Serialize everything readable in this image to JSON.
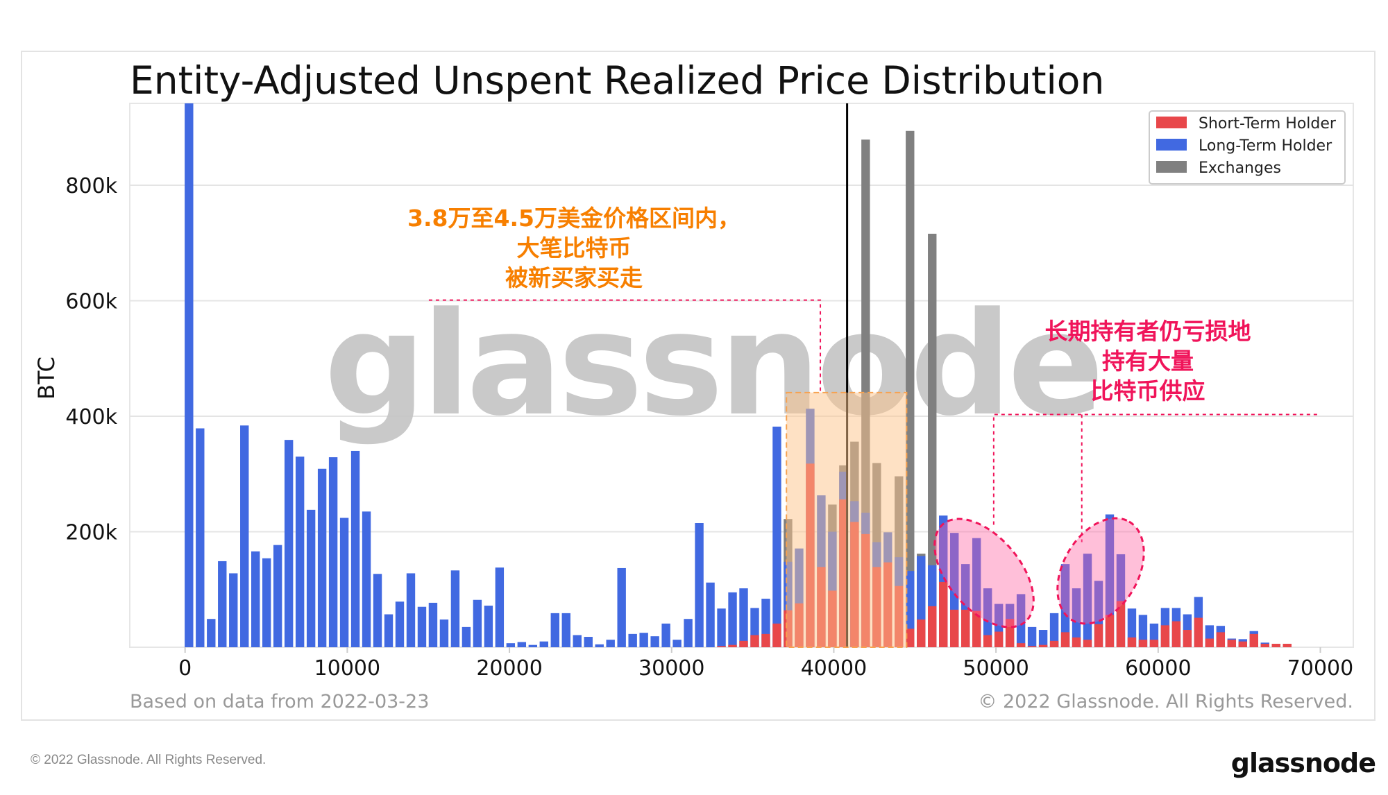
{
  "chart_data": {
    "type": "bar",
    "title": "Entity-Adjusted Unspent Realized Price Distribution",
    "xlabel": "",
    "ylabel": "BTC",
    "xlim": [
      -3300,
      72000
    ],
    "ylim": [
      0,
      942000
    ],
    "x_ticks": [
      0,
      10000,
      20000,
      30000,
      40000,
      50000,
      60000,
      70000
    ],
    "x_tick_labels": [
      "0",
      "10000",
      "20000",
      "30000",
      "40000",
      "50000",
      "60000",
      "70000"
    ],
    "y_ticks": [
      200000,
      400000,
      600000,
      800000
    ],
    "y_tick_labels": [
      "200k",
      "400k",
      "600k",
      "800k"
    ],
    "grid": true,
    "legend_position": "top-right",
    "x": [
      240,
      924,
      1608,
      2292,
      2976,
      3660,
      4344,
      5028,
      5712,
      6396,
      7080,
      7764,
      8448,
      9132,
      9816,
      10500,
      11184,
      11868,
      12552,
      13236,
      13920,
      14604,
      15288,
      15972,
      16656,
      17340,
      18024,
      18708,
      19392,
      20076,
      20760,
      21444,
      22128,
      22812,
      23496,
      24180,
      24864,
      25548,
      26232,
      26916,
      27600,
      28284,
      28968,
      29652,
      30336,
      31020,
      31704,
      32388,
      33072,
      33756,
      34440,
      35124,
      35808,
      36492,
      37176,
      37860,
      38544,
      39228,
      39912,
      40596,
      41280,
      41964,
      42648,
      43332,
      44016,
      44700,
      45384,
      46068,
      46752,
      47436,
      48120,
      48804,
      49488,
      50172,
      50856,
      51540,
      52224,
      52908,
      53592,
      54276,
      54960,
      55644,
      56328,
      57012,
      57696,
      58380,
      59064,
      59748,
      60432,
      61116,
      61800,
      62484,
      63168,
      63852,
      64536,
      65220,
      65904,
      66588,
      67272,
      67956
    ],
    "series": [
      {
        "name": "Short-Term Holder",
        "color": "#e8474a",
        "values": [
          0,
          0,
          0,
          0,
          0,
          0,
          0,
          0,
          0,
          0,
          0,
          0,
          0,
          0,
          0,
          0,
          0,
          0,
          0,
          0,
          0,
          0,
          0,
          0,
          0,
          0,
          0,
          0,
          0,
          0,
          0,
          0,
          0,
          0,
          0,
          0,
          0,
          0,
          0,
          0,
          0,
          0,
          0,
          0,
          0,
          0,
          0,
          0,
          2000,
          4000,
          11000,
          21000,
          23000,
          41000,
          64000,
          76000,
          318000,
          139000,
          98000,
          256000,
          217000,
          196000,
          139000,
          147000,
          106000,
          32000,
          48000,
          71000,
          113000,
          65000,
          65000,
          63000,
          21000,
          27000,
          49000,
          7000,
          2000,
          4000,
          11000,
          26000,
          17000,
          13000,
          40000,
          56000,
          80000,
          17000,
          13000,
          13000,
          38000,
          45000,
          30000,
          51000,
          15000,
          26000,
          13000,
          10000,
          23000,
          6000,
          6000,
          6000
        ]
      },
      {
        "name": "Long-Term Holder",
        "color": "#4169e1",
        "values": [
          1000000,
          379000,
          49000,
          149000,
          128000,
          384000,
          166000,
          154000,
          177000,
          359000,
          330000,
          238000,
          309000,
          329000,
          224000,
          340000,
          235000,
          127000,
          57000,
          79000,
          128000,
          70000,
          77000,
          48000,
          133000,
          35000,
          82000,
          72000,
          138000,
          7000,
          9000,
          4000,
          10000,
          59000,
          59000,
          21000,
          18000,
          5000,
          13000,
          137000,
          23000,
          25000,
          19000,
          41000,
          13000,
          49000,
          215000,
          112000,
          67000,
          95000,
          102000,
          68000,
          84000,
          382000,
          148000,
          171000,
          413000,
          263000,
          200000,
          304000,
          253000,
          233000,
          182000,
          199000,
          156000,
          132000,
          158000,
          142000,
          228000,
          198000,
          144000,
          189000,
          102000,
          75000,
          75000,
          92000,
          35000,
          30000,
          59000,
          144000,
          102000,
          162000,
          115000,
          230000,
          161000,
          67000,
          56000,
          41000,
          68000,
          68000,
          57000,
          87000,
          38000,
          37000,
          15000,
          14000,
          28000,
          8000,
          6000,
          6000
        ]
      },
      {
        "name": "Exchanges",
        "color": "#808080",
        "values": [
          0,
          0,
          0,
          0,
          0,
          0,
          0,
          0,
          0,
          0,
          0,
          0,
          0,
          0,
          0,
          0,
          0,
          0,
          0,
          0,
          0,
          0,
          0,
          0,
          0,
          0,
          0,
          0,
          0,
          0,
          0,
          0,
          0,
          0,
          0,
          0,
          0,
          0,
          0,
          0,
          0,
          0,
          0,
          0,
          0,
          0,
          0,
          0,
          0,
          0,
          0,
          0,
          0,
          0,
          222000,
          0,
          0,
          0,
          247000,
          315000,
          356000,
          879000,
          319000,
          0,
          296000,
          894000,
          162000,
          716000,
          0,
          0,
          0,
          0,
          0,
          0,
          0,
          0,
          0,
          0,
          0,
          0,
          0,
          0,
          0,
          0,
          0,
          0,
          0,
          0,
          0,
          0,
          0,
          0,
          0,
          0,
          0,
          0,
          0,
          0,
          0,
          0
        ]
      }
    ],
    "current_price_line_x": 40820,
    "highlight_range": {
      "x": [
        37080,
        44490
      ],
      "y_top": 441000,
      "color": "#fdd0a2"
    },
    "annotations": [
      {
        "lines": [
          "3.8万至4.5万美金价格区间内，",
          "大笔比特币",
          "被新买家买走"
        ],
        "color": "#f77f00"
      },
      {
        "lines": [
          "长期持有者仍亏损地",
          "持有大量",
          "比特币供应"
        ],
        "color": "#f0145a"
      }
    ],
    "watermark": "glassnode",
    "note_left": "Based on data from 2022-03-23",
    "note_right": "© 2022 Glassnode. All Rights Reserved."
  },
  "footer": {
    "copyright": "© 2022 Glassnode. All Rights Reserved.",
    "logo": "glassnode"
  }
}
